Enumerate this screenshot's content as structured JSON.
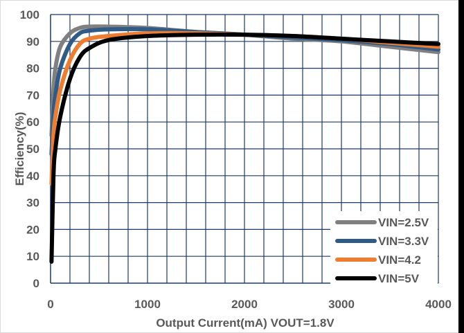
{
  "chart_data": {
    "type": "line",
    "title": "",
    "xlabel": "Output Current(mA) VOUT=1.8V",
    "ylabel": "Efficiency(%)",
    "xlim": [
      0,
      4000
    ],
    "ylim": [
      0,
      100
    ],
    "x_ticks": [
      "0",
      "1000",
      "2000",
      "3000",
      "4000"
    ],
    "y_ticks": [
      "0",
      "10",
      "20",
      "30",
      "40",
      "50",
      "60",
      "70",
      "80",
      "90",
      "100"
    ],
    "grid": true,
    "legend_position": "bottom-right",
    "series": [
      {
        "name": "VIN=2.5V",
        "color": "#808080",
        "points": [
          [
            10,
            55
          ],
          [
            30,
            72
          ],
          [
            50,
            80
          ],
          [
            100,
            88
          ],
          [
            200,
            93
          ],
          [
            300,
            95
          ],
          [
            400,
            95.5
          ],
          [
            600,
            95.5
          ],
          [
            1000,
            95
          ],
          [
            1500,
            93.5
          ],
          [
            2000,
            92.5
          ],
          [
            2500,
            91
          ],
          [
            3000,
            90
          ],
          [
            3500,
            88
          ],
          [
            4000,
            86
          ]
        ]
      },
      {
        "name": "VIN=3.3V",
        "color": "#2F5B86",
        "points": [
          [
            10,
            48
          ],
          [
            30,
            63
          ],
          [
            50,
            70
          ],
          [
            100,
            80
          ],
          [
            200,
            89
          ],
          [
            300,
            93
          ],
          [
            400,
            94
          ],
          [
            600,
            94.5
          ],
          [
            1000,
            94.5
          ],
          [
            1500,
            93.5
          ],
          [
            2000,
            92.5
          ],
          [
            2500,
            91.5
          ],
          [
            3000,
            90.5
          ],
          [
            3500,
            89
          ],
          [
            4000,
            87
          ]
        ]
      },
      {
        "name": "VIN=4.2",
        "color": "#ED7D31",
        "points": [
          [
            10,
            37
          ],
          [
            30,
            55
          ],
          [
            50,
            62
          ],
          [
            100,
            72
          ],
          [
            200,
            83
          ],
          [
            300,
            89
          ],
          [
            400,
            91
          ],
          [
            600,
            92
          ],
          [
            1000,
            93
          ],
          [
            1500,
            93
          ],
          [
            2000,
            92.5
          ],
          [
            2500,
            92
          ],
          [
            3000,
            91
          ],
          [
            3500,
            89.5
          ],
          [
            4000,
            88
          ]
        ]
      },
      {
        "name": "VIN=5V",
        "color": "#000000",
        "points": [
          [
            10,
            8
          ],
          [
            30,
            40
          ],
          [
            50,
            50
          ],
          [
            100,
            62
          ],
          [
            200,
            76
          ],
          [
            300,
            84
          ],
          [
            400,
            87.5
          ],
          [
            600,
            90.5
          ],
          [
            1000,
            92
          ],
          [
            1500,
            92.5
          ],
          [
            2000,
            92.5
          ],
          [
            2500,
            92
          ],
          [
            3000,
            91
          ],
          [
            3500,
            90
          ],
          [
            4000,
            89
          ]
        ]
      }
    ]
  }
}
